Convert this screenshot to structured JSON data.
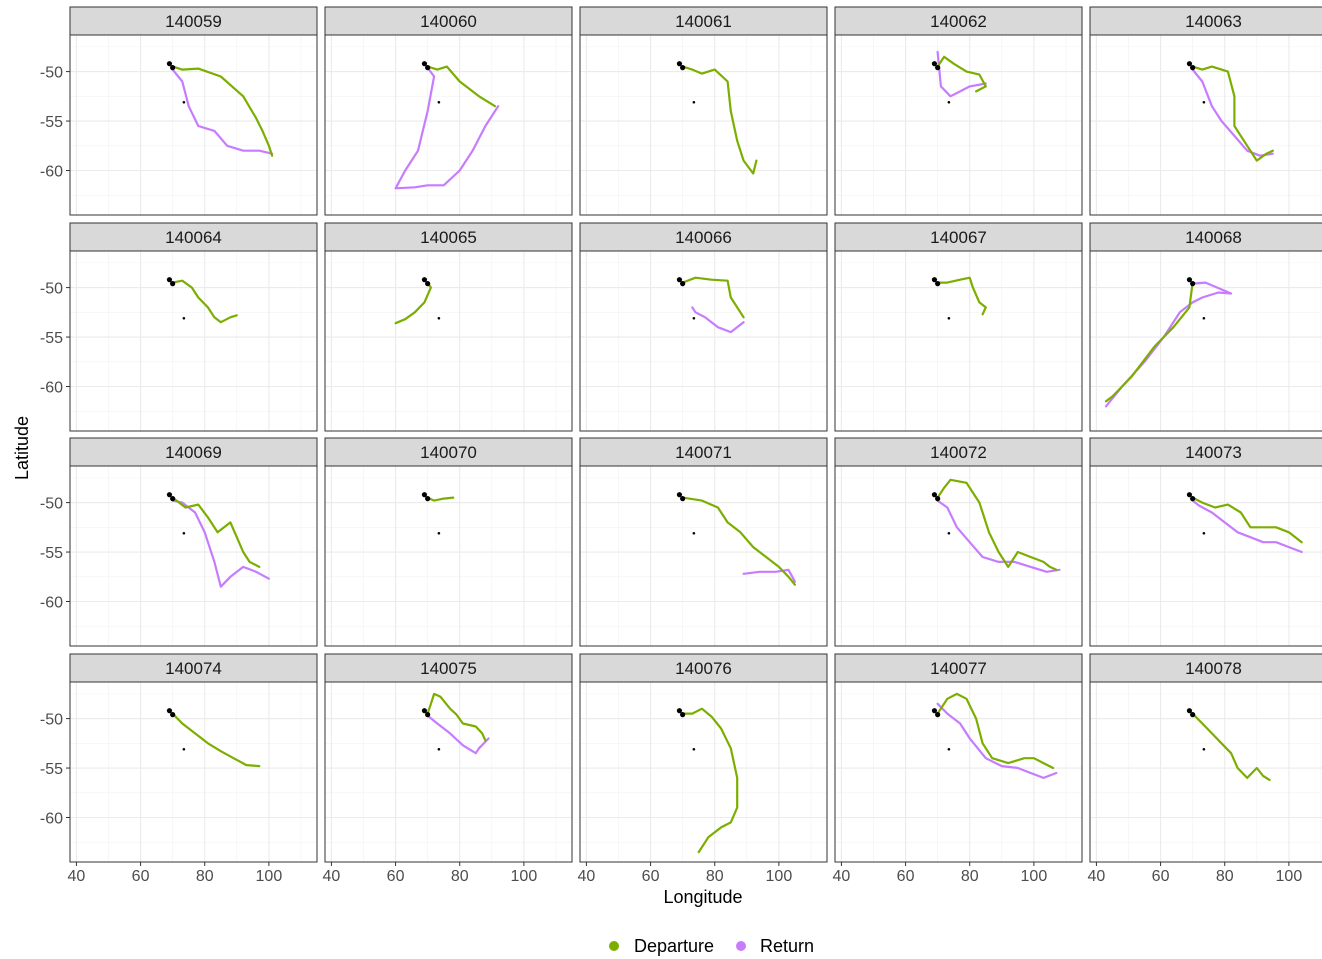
{
  "chart_data": {
    "type": "line",
    "xlabel": "Longitude",
    "ylabel": "Latitude",
    "xlim": [
      38,
      115
    ],
    "ylim": [
      -64.5,
      -46.3
    ],
    "x_ticks": [
      40,
      60,
      80,
      100
    ],
    "y_ticks": [
      -50,
      -55,
      -60
    ],
    "grid": true,
    "legend_position": "bottom",
    "colors": {
      "Departure": "#7cae00",
      "Return": "#c77cff",
      "colony": "#000000"
    },
    "legend": [
      {
        "name": "Departure",
        "color": "#7cae00"
      },
      {
        "name": "Return",
        "color": "#c77cff"
      }
    ],
    "colony_points": [
      [
        69,
        -49.2
      ],
      [
        70,
        -49.6
      ],
      [
        73.5,
        -53.1
      ]
    ],
    "panels": [
      {
        "id": "140059",
        "departure": [
          [
            70,
            -49.5
          ],
          [
            73,
            -49.8
          ],
          [
            78,
            -49.7
          ],
          [
            85,
            -50.5
          ],
          [
            92,
            -52.5
          ],
          [
            96,
            -54.7
          ],
          [
            98,
            -56
          ],
          [
            100,
            -57.5
          ],
          [
            101,
            -58.5
          ]
        ],
        "return": [
          [
            101,
            -58.3
          ],
          [
            97,
            -58
          ],
          [
            92,
            -58
          ],
          [
            87,
            -57.5
          ],
          [
            83,
            -56
          ],
          [
            78,
            -55.5
          ],
          [
            75,
            -53.5
          ],
          [
            73,
            -51
          ],
          [
            70,
            -49.8
          ]
        ]
      },
      {
        "id": "140060",
        "departure": [
          [
            70,
            -49.5
          ],
          [
            73,
            -49.8
          ],
          [
            76,
            -49.5
          ],
          [
            80,
            -51
          ],
          [
            86,
            -52.5
          ],
          [
            91,
            -53.5
          ]
        ],
        "return": [
          [
            92,
            -53.5
          ],
          [
            88,
            -55.5
          ],
          [
            84,
            -58
          ],
          [
            80,
            -60
          ],
          [
            75,
            -61.5
          ],
          [
            70,
            -61.5
          ],
          [
            66,
            -61.7
          ],
          [
            60,
            -61.8
          ],
          [
            63,
            -60
          ],
          [
            67,
            -58
          ],
          [
            70,
            -54
          ],
          [
            72,
            -50.5
          ],
          [
            70,
            -49.6
          ]
        ]
      },
      {
        "id": "140061",
        "departure": [
          [
            70,
            -49.5
          ],
          [
            73,
            -49.8
          ],
          [
            76,
            -50.2
          ],
          [
            80,
            -49.8
          ],
          [
            84,
            -51
          ],
          [
            85,
            -54
          ],
          [
            87,
            -57
          ],
          [
            89,
            -59
          ],
          [
            92,
            -60.3
          ],
          [
            93,
            -59
          ]
        ],
        "return": []
      },
      {
        "id": "140062",
        "departure": [
          [
            70,
            -49.5
          ],
          [
            72,
            -48.5
          ],
          [
            75,
            -49.2
          ],
          [
            79,
            -50
          ],
          [
            83,
            -50.3
          ],
          [
            85,
            -51.5
          ],
          [
            82,
            -52
          ]
        ],
        "return": [
          [
            85,
            -51.2
          ],
          [
            80,
            -51.5
          ],
          [
            77,
            -52
          ],
          [
            74,
            -52.5
          ],
          [
            71,
            -51.5
          ],
          [
            70,
            -48
          ]
        ]
      },
      {
        "id": "140063",
        "departure": [
          [
            70,
            -49.5
          ],
          [
            73,
            -49.8
          ],
          [
            76,
            -49.5
          ],
          [
            81,
            -50
          ],
          [
            83,
            -52.5
          ],
          [
            83,
            -55.5
          ],
          [
            87,
            -57.5
          ],
          [
            90,
            -59
          ],
          [
            93,
            -58.3
          ],
          [
            95,
            -58
          ]
        ],
        "return": [
          [
            95,
            -58.3
          ],
          [
            91,
            -58.5
          ],
          [
            87,
            -58
          ],
          [
            83,
            -56.5
          ],
          [
            79,
            -55
          ],
          [
            76,
            -53.5
          ],
          [
            73,
            -51
          ],
          [
            70,
            -49.8
          ]
        ]
      },
      {
        "id": "140064",
        "departure": [
          [
            70,
            -49.5
          ],
          [
            73,
            -49.3
          ],
          [
            76,
            -50
          ],
          [
            78,
            -51
          ],
          [
            81,
            -52
          ],
          [
            83,
            -53
          ],
          [
            85,
            -53.5
          ],
          [
            88,
            -53
          ],
          [
            90,
            -52.8
          ]
        ],
        "return": []
      },
      {
        "id": "140065",
        "departure": [
          [
            70,
            -49.5
          ],
          [
            71,
            -50
          ],
          [
            69,
            -51.5
          ],
          [
            66,
            -52.5
          ],
          [
            63,
            -53.2
          ],
          [
            60,
            -53.6
          ]
        ],
        "return": []
      },
      {
        "id": "140066",
        "departure": [
          [
            70,
            -49.5
          ],
          [
            74,
            -49
          ],
          [
            79,
            -49.2
          ],
          [
            84,
            -49.3
          ],
          [
            85,
            -51
          ],
          [
            88,
            -52.5
          ],
          [
            89,
            -53
          ]
        ],
        "return": [
          [
            89,
            -53.5
          ],
          [
            85,
            -54.5
          ],
          [
            81,
            -54
          ],
          [
            77,
            -53
          ],
          [
            74,
            -52.5
          ],
          [
            73,
            -52
          ]
        ]
      },
      {
        "id": "140067",
        "departure": [
          [
            70,
            -49.5
          ],
          [
            73,
            -49.5
          ],
          [
            77,
            -49.2
          ],
          [
            80,
            -49
          ],
          [
            81,
            -50
          ],
          [
            83,
            -51.5
          ],
          [
            85,
            -52
          ],
          [
            84,
            -52.7
          ]
        ],
        "return": []
      },
      {
        "id": "140068",
        "departure": [
          [
            70,
            -49.5
          ],
          [
            69,
            -52
          ],
          [
            64,
            -54
          ],
          [
            58,
            -56
          ],
          [
            51,
            -59
          ],
          [
            45,
            -61
          ],
          [
            43,
            -61.5
          ]
        ],
        "return": [
          [
            43,
            -62
          ],
          [
            48,
            -60
          ],
          [
            55,
            -57.5
          ],
          [
            61,
            -55
          ],
          [
            66,
            -52.5
          ],
          [
            70,
            -51.5
          ],
          [
            73,
            -51
          ],
          [
            78,
            -50.5
          ],
          [
            82,
            -50.6
          ],
          [
            74,
            -49.5
          ],
          [
            70,
            -49.6
          ]
        ]
      },
      {
        "id": "140069",
        "departure": [
          [
            70,
            -49.5
          ],
          [
            74,
            -50.5
          ],
          [
            78,
            -50.2
          ],
          [
            81,
            -51.5
          ],
          [
            84,
            -53
          ],
          [
            88,
            -52
          ],
          [
            90,
            -53.5
          ],
          [
            92,
            -55
          ],
          [
            94,
            -56
          ],
          [
            97,
            -56.5
          ]
        ],
        "return": [
          [
            100,
            -57.7
          ],
          [
            96,
            -57
          ],
          [
            92,
            -56.5
          ],
          [
            88,
            -57.5
          ],
          [
            85,
            -58.5
          ],
          [
            83,
            -56
          ],
          [
            80,
            -53
          ],
          [
            77,
            -51
          ],
          [
            73,
            -50
          ],
          [
            70,
            -49.8
          ]
        ]
      },
      {
        "id": "140070",
        "departure": [
          [
            70,
            -49.5
          ],
          [
            72,
            -49.8
          ],
          [
            75,
            -49.6
          ],
          [
            78,
            -49.5
          ]
        ],
        "return": []
      },
      {
        "id": "140071",
        "departure": [
          [
            70,
            -49.5
          ],
          [
            76,
            -49.8
          ],
          [
            81,
            -50.5
          ],
          [
            84,
            -52
          ],
          [
            88,
            -53
          ],
          [
            92,
            -54.5
          ],
          [
            96,
            -55.5
          ],
          [
            100,
            -56.5
          ],
          [
            103,
            -57.5
          ],
          [
            105,
            -58.3
          ]
        ],
        "return": [
          [
            105,
            -58
          ],
          [
            103,
            -56.8
          ],
          [
            99,
            -57
          ],
          [
            94,
            -57
          ],
          [
            89,
            -57.2
          ]
        ]
      },
      {
        "id": "140072",
        "departure": [
          [
            70,
            -49.5
          ],
          [
            72,
            -48.5
          ],
          [
            74,
            -47.7
          ],
          [
            79,
            -48
          ],
          [
            83,
            -50
          ],
          [
            86,
            -53
          ],
          [
            89,
            -55
          ],
          [
            92,
            -56.5
          ],
          [
            95,
            -55
          ],
          [
            99,
            -55.5
          ],
          [
            103,
            -56
          ],
          [
            105,
            -56.5
          ],
          [
            107,
            -56.8
          ]
        ],
        "return": [
          [
            108,
            -56.8
          ],
          [
            104,
            -57
          ],
          [
            99,
            -56.5
          ],
          [
            94,
            -56
          ],
          [
            89,
            -56
          ],
          [
            84,
            -55.5
          ],
          [
            80,
            -54
          ],
          [
            76,
            -52.5
          ],
          [
            73,
            -50.5
          ],
          [
            70,
            -49.8
          ]
        ]
      },
      {
        "id": "140073",
        "departure": [
          [
            70,
            -49.5
          ],
          [
            73,
            -50
          ],
          [
            77,
            -50.5
          ],
          [
            81,
            -50.2
          ],
          [
            85,
            -51
          ],
          [
            88,
            -52.5
          ],
          [
            92,
            -52.5
          ],
          [
            96,
            -52.5
          ],
          [
            100,
            -53
          ],
          [
            104,
            -54
          ]
        ],
        "return": [
          [
            104,
            -55
          ],
          [
            100,
            -54.5
          ],
          [
            96,
            -54
          ],
          [
            92,
            -54
          ],
          [
            88,
            -53.5
          ],
          [
            84,
            -53
          ],
          [
            80,
            -52
          ],
          [
            76,
            -51
          ],
          [
            72,
            -50.3
          ],
          [
            70,
            -49.8
          ]
        ]
      },
      {
        "id": "140074",
        "departure": [
          [
            70,
            -49.5
          ],
          [
            73,
            -50.5
          ],
          [
            77,
            -51.5
          ],
          [
            81,
            -52.5
          ],
          [
            85,
            -53.3
          ],
          [
            89,
            -54
          ],
          [
            93,
            -54.7
          ],
          [
            97,
            -54.8
          ]
        ],
        "return": []
      },
      {
        "id": "140075",
        "departure": [
          [
            70,
            -49.5
          ],
          [
            71,
            -48.5
          ],
          [
            72,
            -47.5
          ],
          [
            74,
            -47.8
          ],
          [
            77,
            -49
          ],
          [
            79,
            -49.6
          ],
          [
            81,
            -50.5
          ],
          [
            85,
            -50.8
          ],
          [
            87,
            -51.5
          ],
          [
            88,
            -52.2
          ]
        ],
        "return": [
          [
            89,
            -52
          ],
          [
            86,
            -53
          ],
          [
            85,
            -53.5
          ],
          [
            81,
            -52.7
          ],
          [
            77,
            -51.5
          ],
          [
            73,
            -50.5
          ],
          [
            70,
            -49.7
          ]
        ]
      },
      {
        "id": "140076",
        "departure": [
          [
            70,
            -49.5
          ],
          [
            73,
            -49.5
          ],
          [
            76,
            -49
          ],
          [
            79,
            -49.8
          ],
          [
            82,
            -51
          ],
          [
            85,
            -53
          ],
          [
            87,
            -56
          ],
          [
            87,
            -59
          ],
          [
            85,
            -60.5
          ],
          [
            82,
            -61
          ],
          [
            78,
            -62
          ],
          [
            75,
            -63.5
          ]
        ],
        "return": []
      },
      {
        "id": "140077",
        "departure": [
          [
            70,
            -49.5
          ],
          [
            73,
            -48
          ],
          [
            76,
            -47.5
          ],
          [
            79,
            -48
          ],
          [
            82,
            -50
          ],
          [
            84,
            -52.5
          ],
          [
            87,
            -54
          ],
          [
            92,
            -54.5
          ],
          [
            97,
            -54
          ],
          [
            100,
            -54
          ],
          [
            103,
            -54.5
          ],
          [
            106,
            -55
          ]
        ],
        "return": [
          [
            107,
            -55.5
          ],
          [
            103,
            -56
          ],
          [
            99,
            -55.5
          ],
          [
            95,
            -55
          ],
          [
            90,
            -54.8
          ],
          [
            85,
            -54
          ],
          [
            80,
            -52
          ],
          [
            77,
            -50.5
          ],
          [
            73,
            -49.5
          ],
          [
            70,
            -48.5
          ]
        ]
      },
      {
        "id": "140078",
        "departure": [
          [
            70,
            -49.5
          ],
          [
            73,
            -50.5
          ],
          [
            76,
            -51.5
          ],
          [
            79,
            -52.5
          ],
          [
            82,
            -53.5
          ],
          [
            84,
            -55
          ],
          [
            87,
            -56
          ],
          [
            90,
            -55
          ],
          [
            92,
            -55.8
          ],
          [
            94,
            -56.2
          ]
        ],
        "return": []
      }
    ]
  }
}
